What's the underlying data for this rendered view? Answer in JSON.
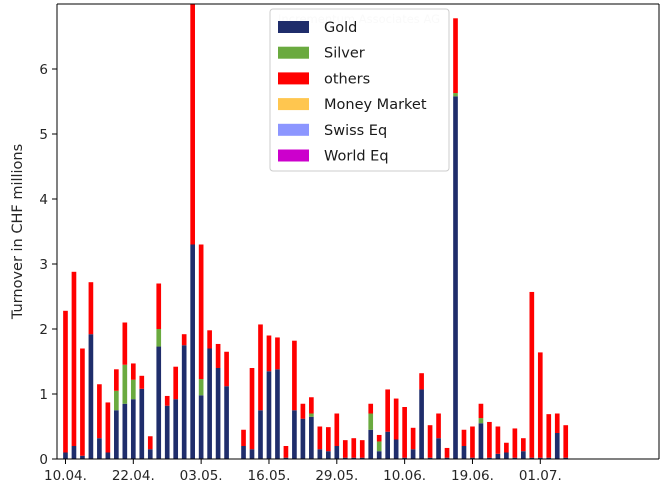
{
  "chart_data": {
    "type": "bar",
    "stacked": true,
    "title": "",
    "xlabel": "",
    "ylabel": "Turnover in CHF millions",
    "ylim": [
      0,
      7
    ],
    "yticks": [
      0,
      1,
      2,
      3,
      4,
      5,
      6
    ],
    "xlim": [
      0,
      71
    ],
    "xticks": [
      {
        "index": 1,
        "label": "10.04."
      },
      {
        "index": 9,
        "label": "22.04."
      },
      {
        "index": 17,
        "label": "03.05."
      },
      {
        "index": 25,
        "label": "16.05."
      },
      {
        "index": 33,
        "label": "29.05."
      },
      {
        "index": 41,
        "label": "10.06."
      },
      {
        "index": 49,
        "label": "19.06."
      },
      {
        "index": 57,
        "label": "01.07."
      }
    ],
    "watermark": "Incrementum Associates AG",
    "legend_position": "top-center",
    "series": [
      {
        "name": "Gold",
        "color": "#1f2d6b",
        "values": [
          0.1,
          0.2,
          0.05,
          1.92,
          0.32,
          0.1,
          0.75,
          0.85,
          0.92,
          1.08,
          0.15,
          1.73,
          0.82,
          0.92,
          1.75,
          3.3,
          0.98,
          1.7,
          1.4,
          1.12,
          0.2,
          0.15,
          0.75,
          1.35,
          1.38,
          0.02,
          0.75,
          0.62,
          0.65,
          0.15,
          0.12,
          0.2,
          0.02,
          0.02,
          0.02,
          0.45,
          0.12,
          0.42,
          0.3,
          0.02,
          0.15,
          1.07,
          0.02,
          0.32,
          0.02,
          5.58,
          0.2,
          0.02,
          0.55,
          0.02,
          0.08,
          0.1,
          0.02,
          0.12,
          0.02,
          0.02,
          0.02,
          0.4,
          0.02
        ]
      },
      {
        "name": "Silver",
        "color": "#6aaa3f",
        "values": [
          0,
          0,
          0,
          0,
          0,
          0,
          0.3,
          0.6,
          0.3,
          0,
          0,
          0.27,
          0,
          0,
          0,
          0,
          0.25,
          0,
          0,
          0,
          0,
          0,
          0,
          0,
          0,
          0,
          0,
          0,
          0.05,
          0,
          0,
          0,
          0,
          0,
          0,
          0.25,
          0.15,
          0,
          0,
          0,
          0,
          0,
          0,
          0,
          0,
          0.05,
          0,
          0,
          0.08,
          0,
          0,
          0,
          0,
          0,
          0,
          0,
          0,
          0,
          0
        ]
      },
      {
        "name": "others",
        "color": "#ff0000",
        "values": [
          2.18,
          2.68,
          1.65,
          0.8,
          0.83,
          0.77,
          0.33,
          0.65,
          0.25,
          0.2,
          0.2,
          0.7,
          0.15,
          0.5,
          0.17,
          3.7,
          2.07,
          0.28,
          0.37,
          0.53,
          0.25,
          1.25,
          1.32,
          0.55,
          0.49,
          0.18,
          1.07,
          0.23,
          0.25,
          0.35,
          0.37,
          0.5,
          0.27,
          0.3,
          0.27,
          0.15,
          0.1,
          0.65,
          0.63,
          0.78,
          0.33,
          0.25,
          0.5,
          0.38,
          0.15,
          1.15,
          0.25,
          0.48,
          0.22,
          0.55,
          0.42,
          0.15,
          0.45,
          0.2,
          2.55,
          1.62,
          0.67,
          0.3,
          0.5
        ]
      },
      {
        "name": "Money Market",
        "color": "#ffc64f",
        "values": []
      },
      {
        "name": "Swiss Eq",
        "color": "#8c96ff",
        "values": []
      },
      {
        "name": "World Eq",
        "color": "#cc00cc",
        "values": []
      }
    ],
    "bar_index": [
      1,
      2,
      3,
      4,
      5,
      6,
      7,
      8,
      9,
      10,
      11,
      12,
      13,
      14,
      15,
      16,
      17,
      18,
      19,
      20,
      22,
      23,
      24,
      25,
      26,
      27,
      28,
      29,
      30,
      31,
      32,
      33,
      34,
      35,
      36,
      37,
      38,
      39,
      40,
      41,
      42,
      43,
      44,
      45,
      46,
      47,
      48,
      49,
      50,
      51,
      52,
      53,
      54,
      55,
      56,
      57,
      58,
      59,
      60
    ]
  }
}
